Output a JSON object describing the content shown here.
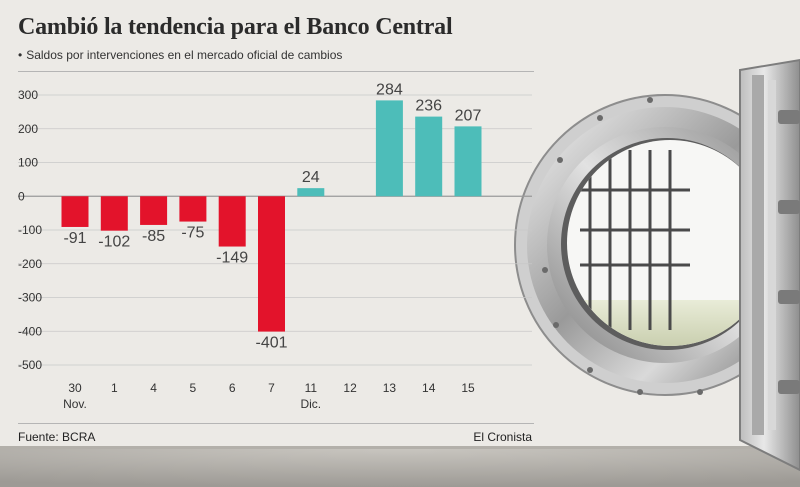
{
  "header": {
    "title": "Cambió la tendencia para el Banco Central",
    "subtitle_bullet": "•",
    "subtitle": "Saldos por intervenciones en el mercado oficial de cambios"
  },
  "footer": {
    "source": "Fuente: BCRA",
    "credit": "El Cronista"
  },
  "colors": {
    "negative": "#e3132b",
    "positive": "#4dbdb9",
    "gridline": "#c8c8c8",
    "background": "#eceae6"
  },
  "chart_data": {
    "type": "bar",
    "title": "Cambió la tendencia para el Banco Central",
    "subtitle": "Saldos por intervenciones en el mercado oficial de cambios",
    "xlabel": "",
    "ylabel": "",
    "ylim": [
      -500,
      300
    ],
    "yticks": [
      "300",
      "200",
      "100",
      "0",
      "-100",
      "-200",
      "-300",
      "-400",
      "-500"
    ],
    "ytick_values": [
      300,
      200,
      100,
      0,
      -100,
      -200,
      -300,
      -400,
      -500
    ],
    "categories": [
      "30",
      "1",
      "4",
      "5",
      "6",
      "7",
      "11",
      "12",
      "13",
      "14",
      "15"
    ],
    "sublabels": [
      "Nov.",
      "",
      "",
      "",
      "",
      "",
      "Dic.",
      "",
      "",
      "",
      ""
    ],
    "values": [
      -91,
      -102,
      -85,
      -75,
      -149,
      -401,
      24,
      null,
      284,
      236,
      207
    ],
    "value_labels": [
      "-91",
      "-102",
      "-85",
      "-75",
      "-149",
      "-401",
      "24",
      "",
      "284",
      "236",
      "207"
    ],
    "grid": "horizontal",
    "legend": "none"
  }
}
